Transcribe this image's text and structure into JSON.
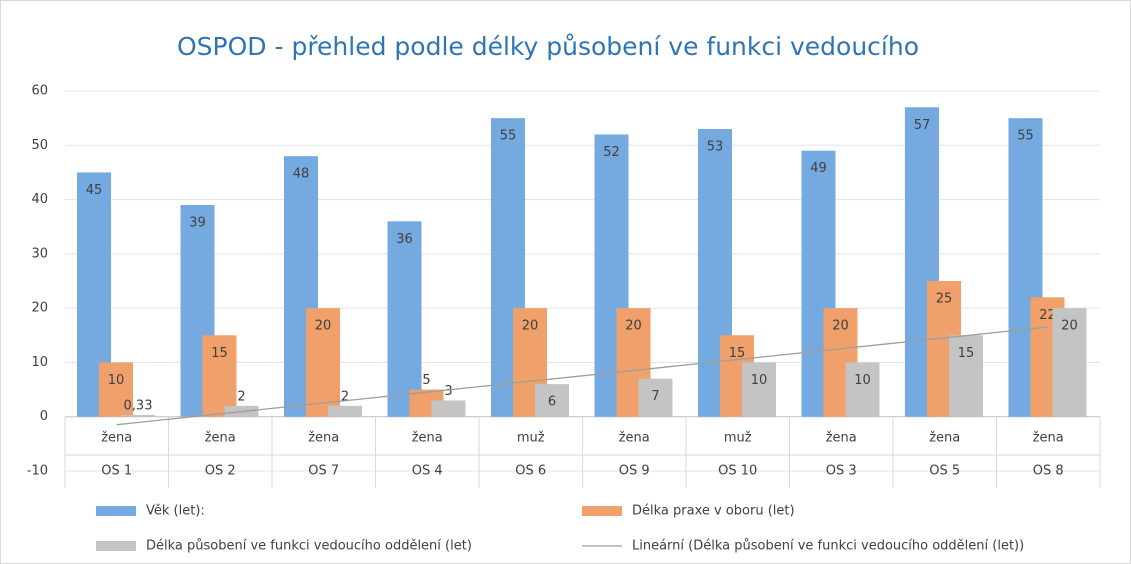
{
  "chart_data": {
    "type": "bar",
    "title": "OSPOD - přehled podle délky působení ve funkci vedoucího",
    "categories": [
      "OS 1",
      "OS 2",
      "OS 7",
      "OS 4",
      "OS 6",
      "OS 9",
      "OS 10",
      "OS 3",
      "OS 5",
      "OS 8"
    ],
    "category_groups": [
      "žena",
      "žena",
      "žena",
      "žena",
      "muž",
      "žena",
      "muž",
      "žena",
      "žena",
      "žena"
    ],
    "series": [
      {
        "name": "Věk (let):",
        "color": "#74aadf",
        "values": [
          45,
          39,
          48,
          36,
          55,
          52,
          53,
          49,
          57,
          55
        ]
      },
      {
        "name": "Délka praxe v oboru (let)",
        "color": "#f0a06a",
        "values": [
          10,
          15,
          20,
          5,
          20,
          20,
          15,
          20,
          25,
          22
        ]
      },
      {
        "name": "Délka působení ve funkci vedoucího  oddělení (let)",
        "color": "#c4c4c4",
        "values": [
          0.33,
          2,
          2,
          3,
          6,
          7,
          10,
          10,
          15,
          20
        ],
        "value_labels": [
          "0,33",
          "2",
          "2",
          "3",
          "6",
          "7",
          "10",
          "10",
          "15",
          "20"
        ]
      }
    ],
    "trendline": {
      "name": "Lineární (Délka působení ve funkci vedoucího  oddělení (let))",
      "type": "linear",
      "series": 2,
      "color": "#9e9e9e"
    },
    "ylim": [
      -10,
      60
    ],
    "yticks": [
      -10,
      0,
      10,
      20,
      30,
      40,
      50,
      60
    ],
    "grid": true
  }
}
